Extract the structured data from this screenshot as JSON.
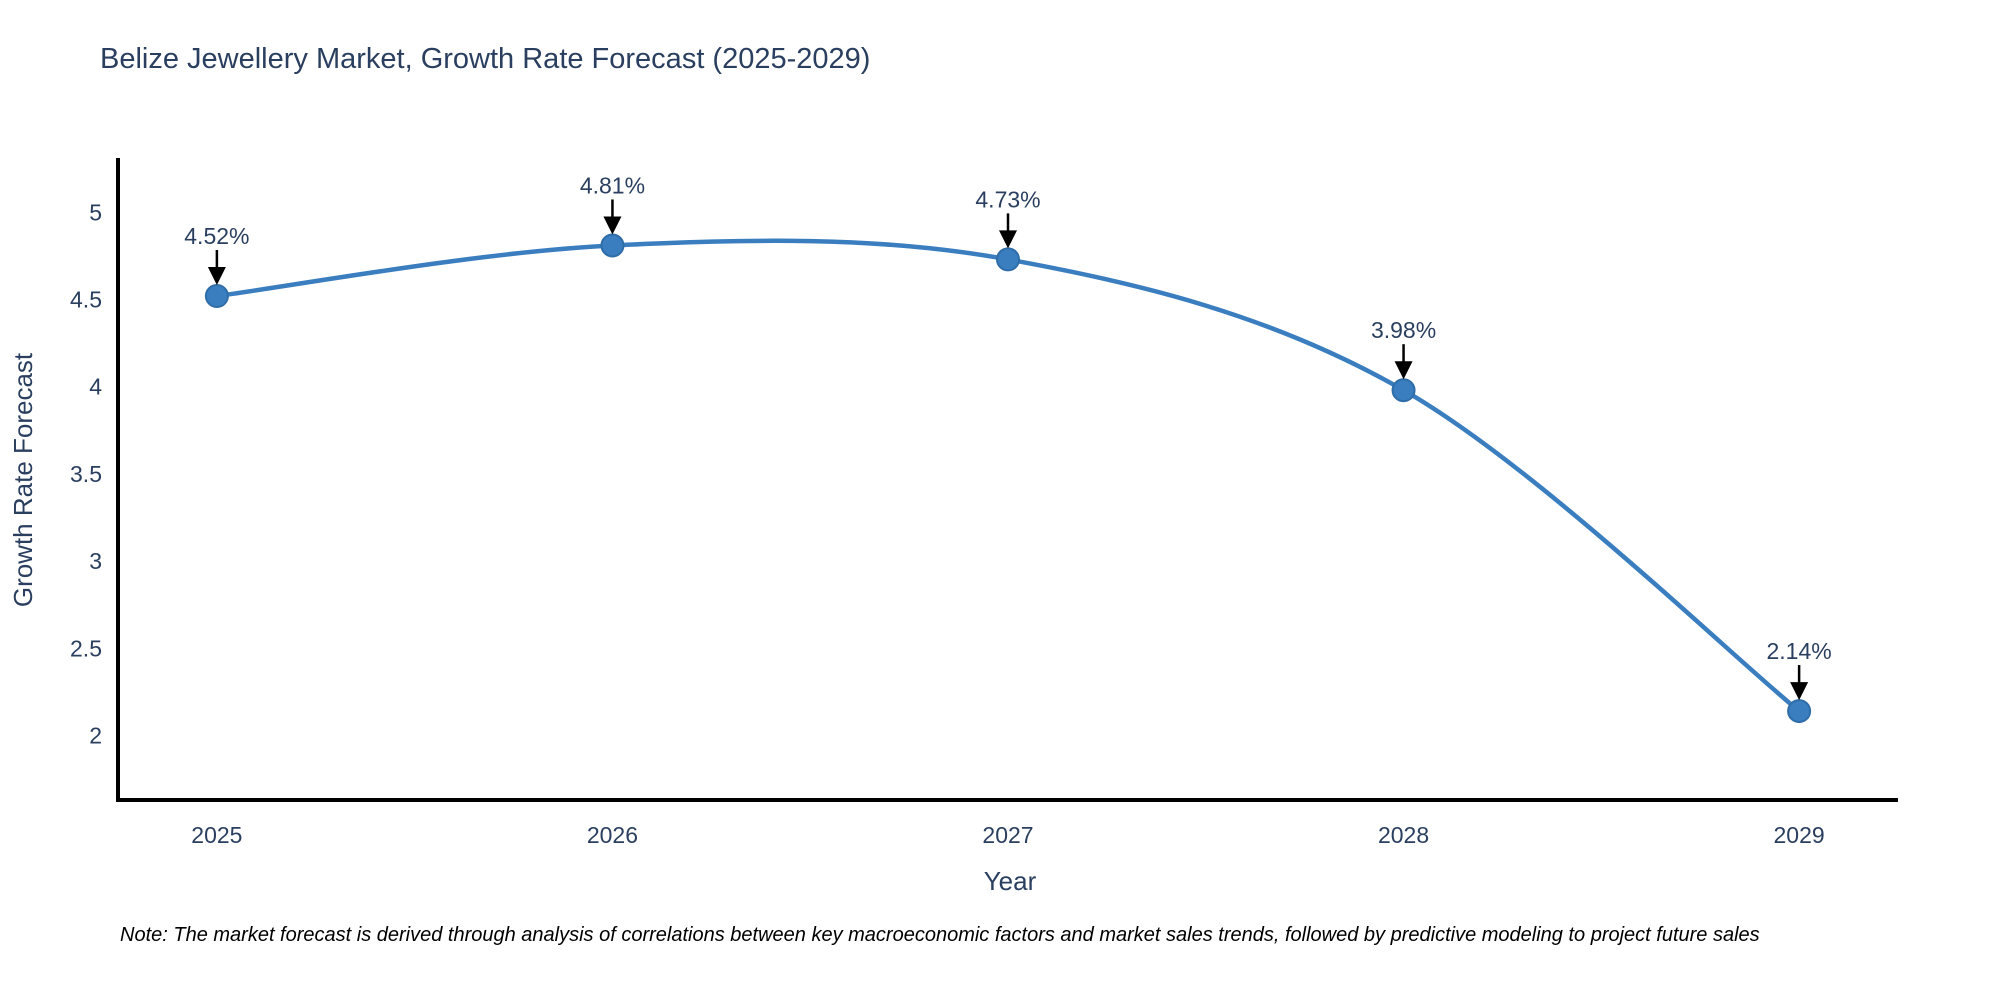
{
  "title": "Belize Jewellery Market, Growth Rate Forecast (2025-2029)",
  "note": "Note: The market forecast is derived through analysis of correlations between key macroeconomic factors and market sales trends, followed by predictive modeling to project future sales",
  "chart_data": {
    "type": "line",
    "title": "Belize Jewellery Market, Growth Rate Forecast (2025-2029)",
    "xlabel": "Year",
    "ylabel": "Growth Rate Forecast",
    "categories": [
      2025,
      2026,
      2027,
      2028,
      2029
    ],
    "series": [
      {
        "name": "Growth Rate Forecast",
        "values": [
          4.52,
          4.81,
          4.73,
          3.98,
          2.14
        ]
      }
    ],
    "data_labels": [
      "4.52%",
      "4.81%",
      "4.73%",
      "3.98%",
      "2.14%"
    ],
    "yticks": [
      2,
      2.5,
      3,
      3.5,
      4,
      4.5,
      5
    ],
    "xticks": [
      "2025",
      "2026",
      "2027",
      "2028",
      "2029"
    ],
    "ylim": [
      1.63,
      5.3
    ],
    "xlim": [
      2024.75,
      2029.25
    ],
    "line_shape": "spline",
    "grid": false,
    "legend_visible": false,
    "colors": {
      "line": "#3a7ebf",
      "marker_fill": "#3a7ebf",
      "marker_stroke": "#2f6da8",
      "text": "#2a3f5f",
      "axis": "#000000",
      "arrow": "#000000",
      "background": "#ffffff"
    }
  }
}
